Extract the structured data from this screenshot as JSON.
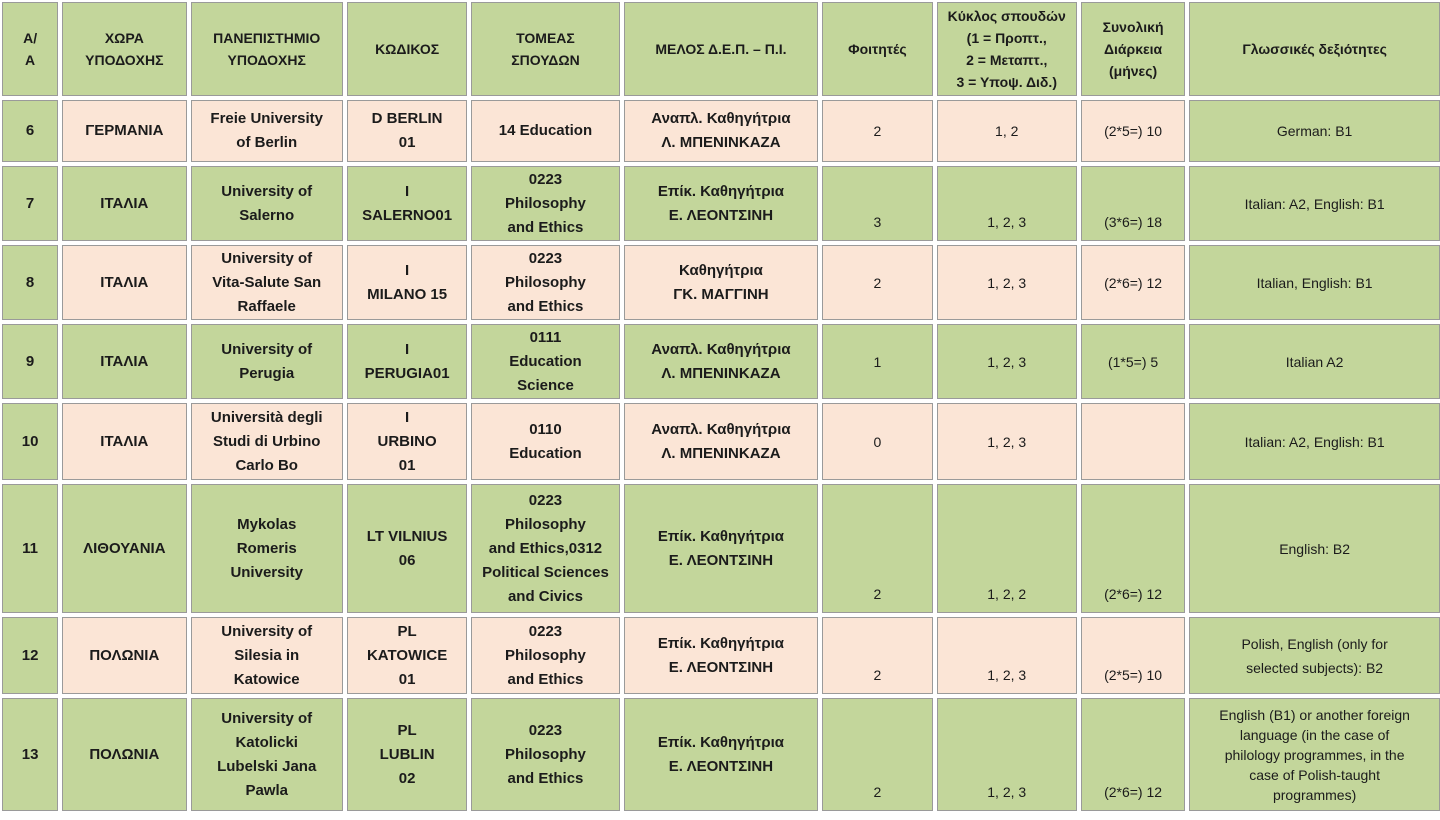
{
  "colors": {
    "green": "#c3d69b",
    "peach": "#fbe5d6"
  },
  "headers": [
    "Α/\nΑ",
    "ΧΩΡΑ\nΥΠΟΔΟΧΗΣ",
    "ΠΑΝΕΠΙΣΤΗΜΙΟ\nΥΠΟΔΟΧΗΣ",
    "ΚΩΔΙΚΟΣ",
    "ΤΟΜΕΑΣ\nΣΠΟΥΔΩΝ",
    "ΜΕΛΟΣ Δ.Ε.Π. – Π.Ι.",
    "Φοιτητές",
    "Κύκλος σπουδών\n(1 = Προπτ.,\n2 = Μεταπτ.,\n3 = Υποψ. Διδ.)",
    "Συνολική\nΔιάρκεια\n(μήνες)",
    "Γλωσσικές δεξιότητες"
  ],
  "rows": [
    {
      "aa": "6",
      "country": "ΓΕΡΜΑΝΙΑ",
      "university": "Freie University\nof Berlin",
      "code": "D BERLIN\n01",
      "field": "14 Education",
      "member": "Αναπλ. Καθηγήτρια\nΛ. ΜΠΕΝΙΝΚΑΖΑ",
      "students": "2",
      "cycle": "1, 2",
      "duration": "(2*5=) 10",
      "languages": "German: B1"
    },
    {
      "aa": "7",
      "country": "ΙΤΑΛΙΑ",
      "university": "University of\nSalerno",
      "code": "I\nSALERNO01",
      "field": "0223\nPhilosophy\nand Ethics",
      "member": "Επίκ. Καθηγήτρια\nΕ. ΛΕΟΝΤΣΙΝΗ",
      "students": "3",
      "cycle": "1, 2, 3",
      "duration": "(3*6=) 18",
      "languages": "Italian: A2, English: B1"
    },
    {
      "aa": "8",
      "country": "ΙΤΑΛΙΑ",
      "university": "University of\nVita-Salute San\nRaffaele",
      "code": "I\nMILANO 15",
      "field": "0223\nPhilosophy\nand Ethics",
      "member": "Καθηγήτρια\nΓΚ. ΜΑΓΓΙΝΗ",
      "students": "2",
      "cycle": "1, 2, 3",
      "duration": "(2*6=) 12",
      "languages": "Italian, English: B1"
    },
    {
      "aa": "9",
      "country": "ΙΤΑΛΙΑ",
      "university": "University of\nPerugia",
      "code": "I\nPERUGIA01",
      "field": "0111\nEducation\nScience",
      "member": "Αναπλ. Καθηγήτρια\nΛ. ΜΠΕΝΙΝΚΑΖΑ",
      "students": "1",
      "cycle": "1, 2, 3",
      "duration": "(1*5=) 5",
      "languages": "Italian A2"
    },
    {
      "aa": "10",
      "country": "ΙΤΑΛΙΑ",
      "university": "Università degli\nStudi di Urbino\nCarlo Bo",
      "code": "I\nURBINO\n01",
      "field": "0110\nEducation",
      "member": "Αναπλ. Καθηγήτρια\nΛ. ΜΠΕΝΙΝΚΑΖΑ",
      "students": "0",
      "cycle": "1, 2, 3",
      "duration": "",
      "languages": "Italian: A2, English: B1"
    },
    {
      "aa": "11",
      "country": "ΛΙΘΟΥΑΝΙΑ",
      "university": "Mykolas\nRomeris\nUniversity",
      "code": "LT VILNIUS\n06",
      "field": "0223\nPhilosophy\nand Ethics,0312\nPolitical Sciences\nand Civics",
      "member": "Επίκ. Καθηγήτρια\nΕ. ΛΕΟΝΤΣΙΝΗ",
      "students": "2",
      "cycle": "1, 2, 2",
      "duration": "(2*6=) 12",
      "languages": "English: B2"
    },
    {
      "aa": "12",
      "country": "ΠΟΛΩΝΙΑ",
      "university": "University of\nSilesia in\nKatowice",
      "code": "PL\nKATOWICE\n01",
      "field": "0223\nPhilosophy\nand Ethics",
      "member": "Επίκ. Καθηγήτρια\nΕ. ΛΕΟΝΤΣΙΝΗ",
      "students": "2",
      "cycle": "1, 2, 3",
      "duration": "(2*5=) 10",
      "languages": "Polish, English (only for\nselected subjects): B2"
    },
    {
      "aa": "13",
      "country": "ΠΟΛΩΝΙΑ",
      "university": "University of\nKatolicki\nLubelski Jana\nPawla",
      "code": "PL\nLUBLIN\n02",
      "field": "0223\nPhilosophy\nand Ethics",
      "member": "Επίκ. Καθηγήτρια\nΕ. ΛΕΟΝΤΣΙΝΗ",
      "students": "2",
      "cycle": "1, 2, 3",
      "duration": "(2*6=) 12",
      "languages": "English (B1) or another foreign\nlanguage (in the case of\nphilology programmes, in the\ncase of Polish-taught\nprogrammes)"
    }
  ]
}
